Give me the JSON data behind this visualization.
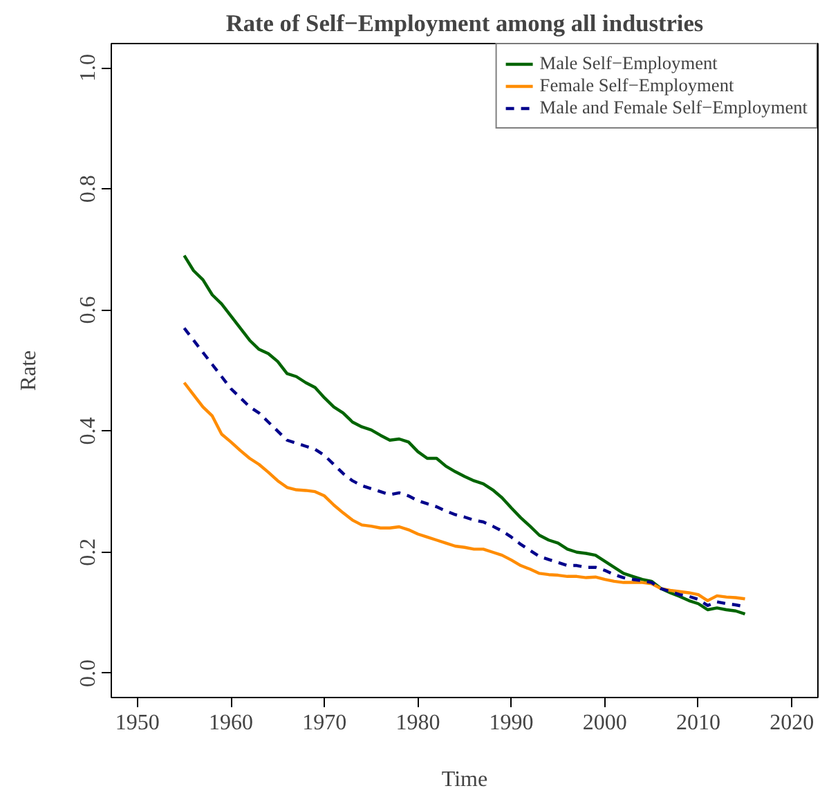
{
  "chart_data": {
    "type": "line",
    "title": "Rate of Self−Employment among all industries",
    "xlabel": "Time",
    "ylabel": "Rate",
    "x": [
      1955,
      1956,
      1957,
      1958,
      1959,
      1960,
      1961,
      1962,
      1963,
      1964,
      1965,
      1966,
      1967,
      1968,
      1969,
      1970,
      1971,
      1972,
      1973,
      1974,
      1975,
      1976,
      1977,
      1978,
      1979,
      1980,
      1981,
      1982,
      1983,
      1984,
      1985,
      1986,
      1987,
      1988,
      1989,
      1990,
      1991,
      1992,
      1993,
      1994,
      1995,
      1996,
      1997,
      1998,
      1999,
      2000,
      2001,
      2002,
      2003,
      2004,
      2005,
      2006,
      2007,
      2008,
      2009,
      2010,
      2011,
      2012,
      2013,
      2014,
      2015
    ],
    "series": [
      {
        "name": "Male Self−Employment",
        "color": "#006400",
        "line_style": "solid",
        "values": [
          0.69,
          0.665,
          0.65,
          0.625,
          0.61,
          0.59,
          0.57,
          0.55,
          0.535,
          0.528,
          0.515,
          0.495,
          0.49,
          0.48,
          0.472,
          0.455,
          0.44,
          0.43,
          0.415,
          0.407,
          0.402,
          0.393,
          0.385,
          0.387,
          0.382,
          0.366,
          0.355,
          0.355,
          0.342,
          0.333,
          0.325,
          0.318,
          0.313,
          0.303,
          0.29,
          0.273,
          0.257,
          0.243,
          0.228,
          0.22,
          0.215,
          0.205,
          0.2,
          0.198,
          0.195,
          0.185,
          0.175,
          0.165,
          0.16,
          0.155,
          0.152,
          0.14,
          0.133,
          0.127,
          0.12,
          0.115,
          0.105,
          0.108,
          0.105,
          0.103,
          0.098
        ]
      },
      {
        "name": "Female Self−Employment",
        "color": "#ff8c00",
        "line_style": "solid",
        "values": [
          0.48,
          0.46,
          0.44,
          0.425,
          0.395,
          0.382,
          0.368,
          0.355,
          0.345,
          0.332,
          0.318,
          0.307,
          0.303,
          0.302,
          0.3,
          0.293,
          0.278,
          0.265,
          0.253,
          0.245,
          0.243,
          0.24,
          0.24,
          0.242,
          0.237,
          0.23,
          0.225,
          0.22,
          0.215,
          0.21,
          0.208,
          0.205,
          0.205,
          0.2,
          0.195,
          0.187,
          0.178,
          0.172,
          0.165,
          0.163,
          0.162,
          0.16,
          0.16,
          0.158,
          0.159,
          0.155,
          0.152,
          0.15,
          0.15,
          0.15,
          0.148,
          0.14,
          0.137,
          0.135,
          0.133,
          0.13,
          0.12,
          0.128,
          0.126,
          0.125,
          0.123
        ]
      },
      {
        "name": "Male and Female Self−Employment",
        "color": "#00008b",
        "line_style": "dashed",
        "values": [
          0.57,
          0.55,
          0.53,
          0.51,
          0.49,
          0.47,
          0.455,
          0.44,
          0.43,
          0.415,
          0.4,
          0.385,
          0.38,
          0.375,
          0.37,
          0.36,
          0.345,
          0.33,
          0.318,
          0.31,
          0.305,
          0.3,
          0.295,
          0.298,
          0.293,
          0.285,
          0.28,
          0.275,
          0.268,
          0.262,
          0.258,
          0.253,
          0.25,
          0.243,
          0.235,
          0.225,
          0.213,
          0.203,
          0.193,
          0.188,
          0.183,
          0.178,
          0.178,
          0.175,
          0.175,
          0.17,
          0.163,
          0.158,
          0.155,
          0.153,
          0.15,
          0.14,
          0.135,
          0.13,
          0.127,
          0.122,
          0.112,
          0.118,
          0.115,
          0.113,
          0.11
        ]
      }
    ],
    "xlim": [
      1947.2,
      2022.8
    ],
    "ylim": [
      -0.04,
      1.04
    ],
    "xticks": [
      1950,
      1960,
      1970,
      1980,
      1990,
      2000,
      2010,
      2020
    ],
    "yticks": [
      {
        "value": 0,
        "label": "0.0"
      },
      {
        "value": 0.2,
        "label": "0.2"
      },
      {
        "value": 0.4,
        "label": "0.4"
      },
      {
        "value": 0.6,
        "label": "0.6"
      },
      {
        "value": 0.8,
        "label": "0.8"
      },
      {
        "value": 1,
        "label": "1.0"
      }
    ],
    "grid": false,
    "legend": "top right",
    "marker": "none"
  }
}
